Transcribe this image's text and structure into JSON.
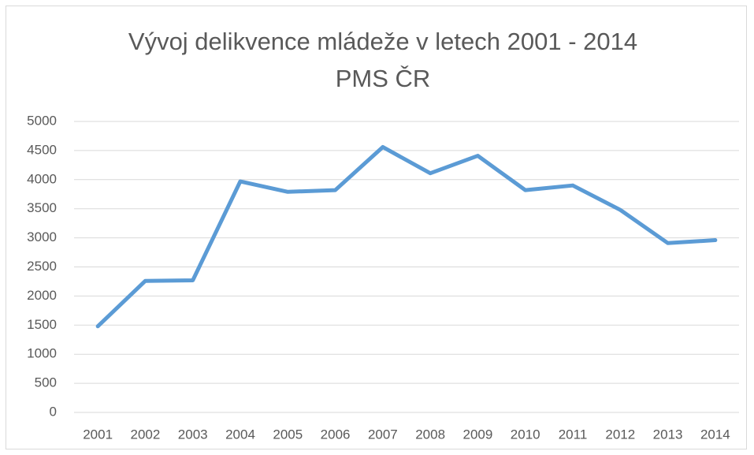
{
  "chart_data": {
    "type": "line",
    "title": "Vývoj delikvence mládeže v letech 2001 - 2014",
    "subtitle": "PMS ČR",
    "categories": [
      "2001",
      "2002",
      "2003",
      "2004",
      "2005",
      "2006",
      "2007",
      "2008",
      "2009",
      "2010",
      "2011",
      "2012",
      "2013",
      "2014"
    ],
    "series": [
      {
        "name": "PMS ČR",
        "color": "#5b9bd5",
        "values": [
          1480,
          2260,
          2270,
          3970,
          3790,
          3820,
          4560,
          4110,
          4410,
          3820,
          3900,
          3480,
          2910,
          2960
        ]
      }
    ],
    "ylim": [
      0,
      5000
    ],
    "yticks": [
      0,
      500,
      1000,
      1500,
      2000,
      2500,
      3000,
      3500,
      4000,
      4500,
      5000
    ],
    "grid": true
  }
}
